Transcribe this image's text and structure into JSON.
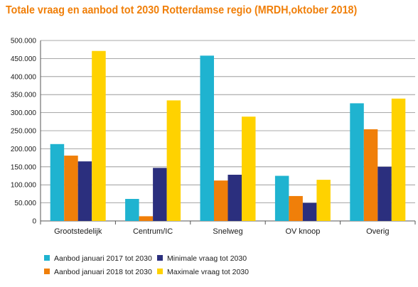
{
  "chart_data": {
    "type": "bar",
    "title": "Totale vraag en aanbod tot 2030 Rotterdamse regio (MRDH,oktober 2018)",
    "xlabel": "",
    "ylabel": "",
    "categories": [
      "Grootstedelijk",
      "Centrum/IC",
      "Snelweg",
      "OV knoop",
      "Overig"
    ],
    "series": [
      {
        "name": "Aanbod januari 2017 tot 2030",
        "color": "#1fb3d0",
        "values": [
          213000,
          61000,
          458000,
          125000,
          326000
        ]
      },
      {
        "name": "Aanbod januari 2018 tot 2030",
        "color": "#f07f09",
        "values": [
          181000,
          13000,
          112000,
          69000,
          254000
        ]
      },
      {
        "name": "Minimale vraag tot 2030",
        "color": "#2b2f7e",
        "values": [
          165000,
          147000,
          128000,
          50000,
          150000
        ]
      },
      {
        "name": "Maximale vraag tot 2030",
        "color": "#ffd200",
        "values": [
          471000,
          334000,
          289000,
          114000,
          339000
        ]
      }
    ],
    "ylim": [
      0,
      500000
    ],
    "yticks": [
      0,
      50000,
      100000,
      150000,
      200000,
      250000,
      300000,
      350000,
      400000,
      450000,
      500000
    ],
    "ytick_labels": [
      "0",
      "50.000",
      "100.000",
      "150.000",
      "200.000",
      "250.000",
      "300.000",
      "350.000",
      "400.000",
      "450.000",
      "500.000"
    ],
    "grid": true,
    "legend_position": "bottom"
  }
}
